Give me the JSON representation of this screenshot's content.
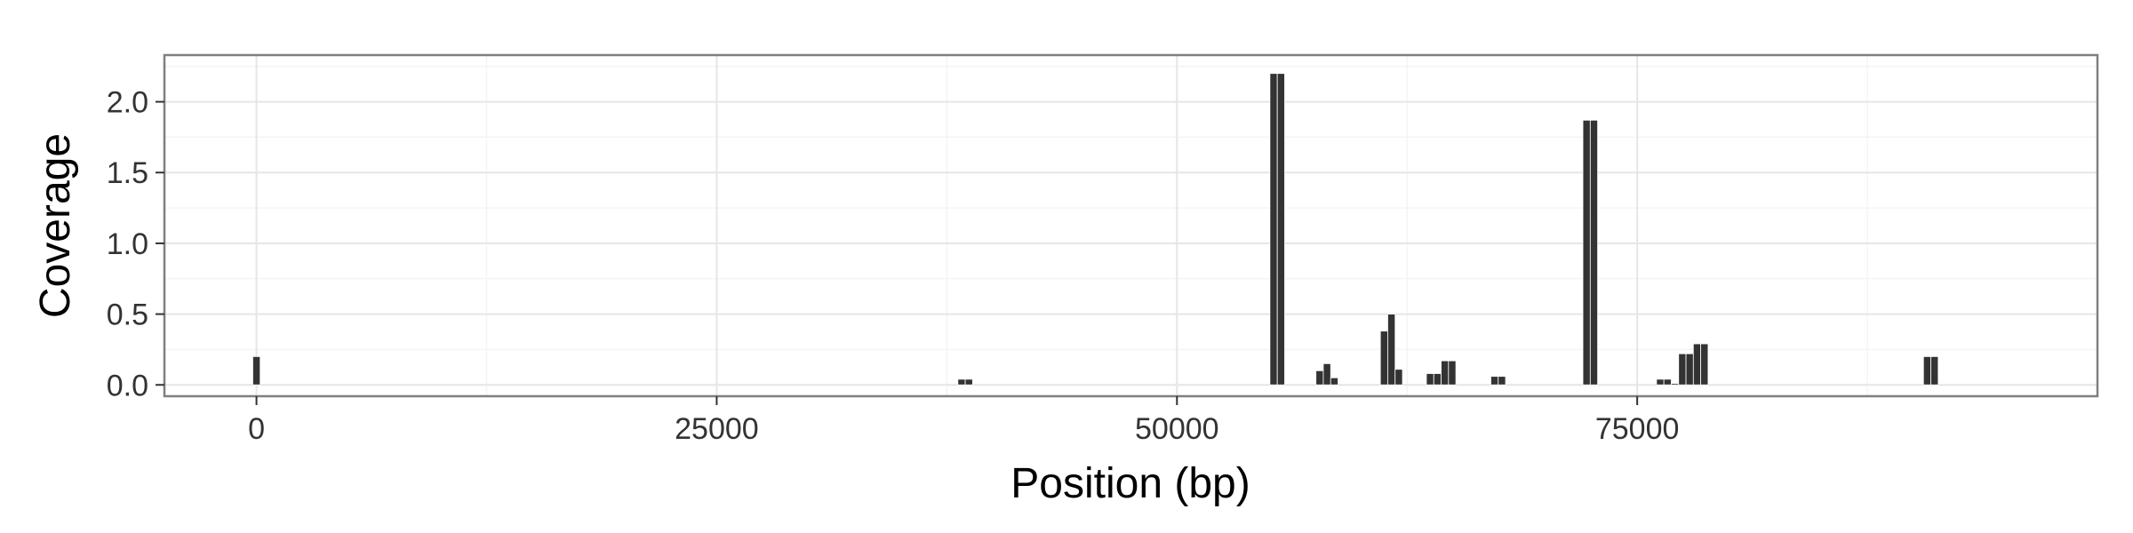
{
  "chart_data": {
    "type": "bar",
    "xlabel": "Position (bp)",
    "ylabel": "Coverage",
    "xlim": [
      -5000,
      100000
    ],
    "ylim": [
      -0.08,
      2.33
    ],
    "x_ticks": [
      0,
      25000,
      50000,
      75000
    ],
    "y_ticks": [
      0.0,
      0.5,
      1.0,
      1.5,
      2.0
    ],
    "x_tick_labels": [
      "0",
      "25000",
      "50000",
      "75000"
    ],
    "y_tick_labels": [
      "0.0",
      "0.5",
      "1.0",
      "1.5",
      "2.0"
    ],
    "grid": true,
    "bar_width": 400,
    "bar_color": "#333333",
    "bars": [
      {
        "x": 0,
        "y": 0.2
      },
      {
        "x": 38300,
        "y": 0.04
      },
      {
        "x": 38700,
        "y": 0.04
      },
      {
        "x": 55250,
        "y": 2.2
      },
      {
        "x": 55650,
        "y": 2.2
      },
      {
        "x": 57750,
        "y": 0.1
      },
      {
        "x": 58150,
        "y": 0.15
      },
      {
        "x": 58550,
        "y": 0.05
      },
      {
        "x": 61250,
        "y": 0.38
      },
      {
        "x": 61650,
        "y": 0.5
      },
      {
        "x": 62050,
        "y": 0.11
      },
      {
        "x": 63750,
        "y": 0.08
      },
      {
        "x": 64150,
        "y": 0.08
      },
      {
        "x": 64550,
        "y": 0.17
      },
      {
        "x": 64950,
        "y": 0.17
      },
      {
        "x": 67250,
        "y": 0.06
      },
      {
        "x": 67650,
        "y": 0.06
      },
      {
        "x": 72250,
        "y": 1.87
      },
      {
        "x": 72650,
        "y": 1.87
      },
      {
        "x": 76250,
        "y": 0.04
      },
      {
        "x": 76650,
        "y": 0.04
      },
      {
        "x": 77050,
        "y": 0.01
      },
      {
        "x": 77450,
        "y": 0.22
      },
      {
        "x": 77850,
        "y": 0.22
      },
      {
        "x": 78250,
        "y": 0.29
      },
      {
        "x": 78650,
        "y": 0.29
      },
      {
        "x": 90750,
        "y": 0.2
      },
      {
        "x": 91150,
        "y": 0.2
      }
    ]
  }
}
